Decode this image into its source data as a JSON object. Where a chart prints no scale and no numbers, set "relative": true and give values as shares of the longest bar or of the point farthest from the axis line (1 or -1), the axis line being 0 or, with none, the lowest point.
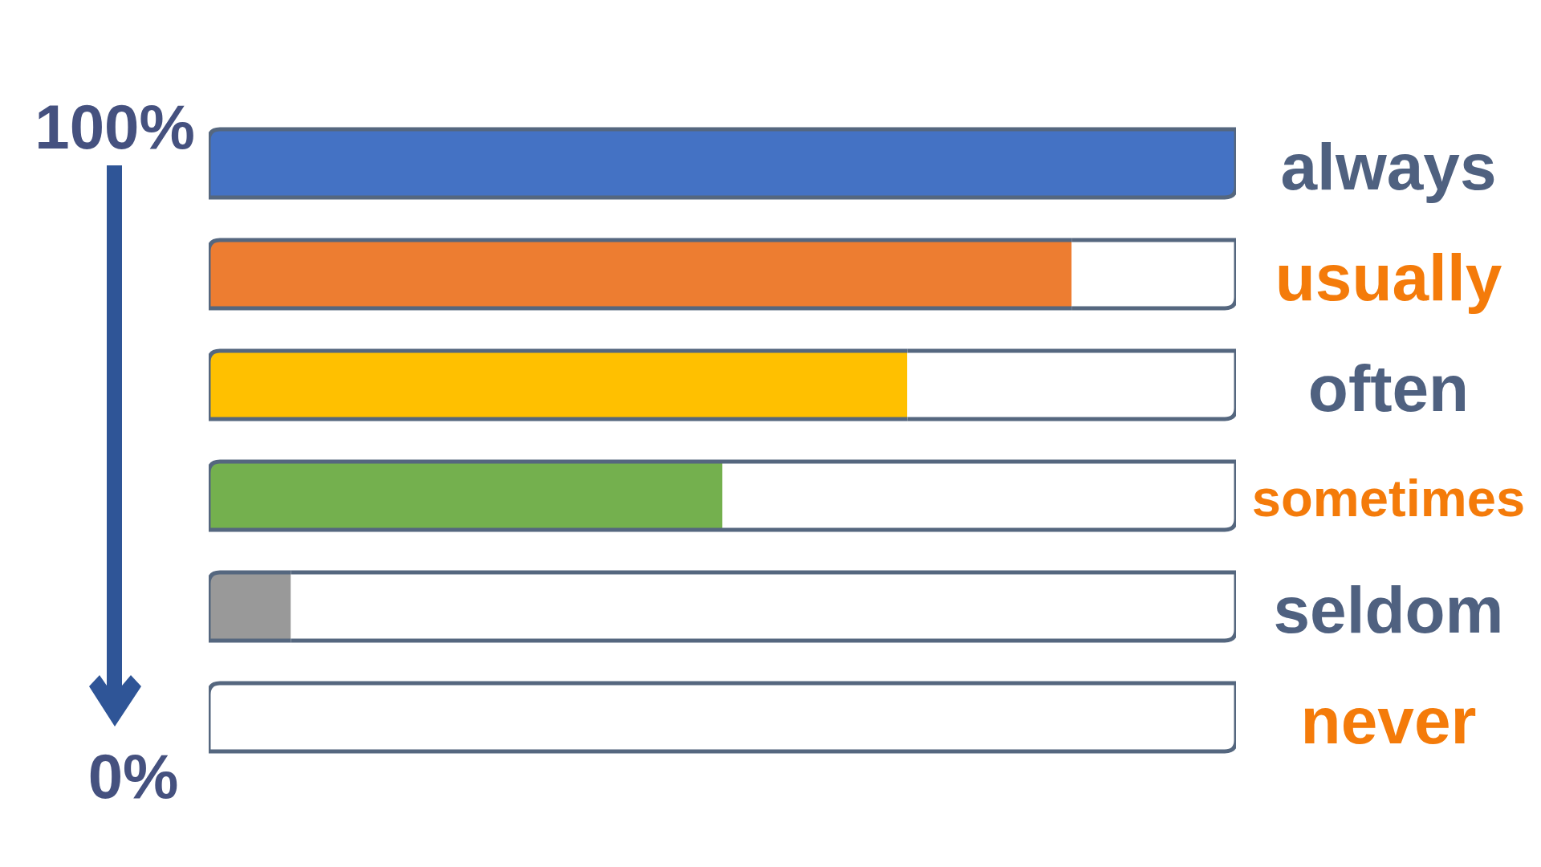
{
  "chart_data": {
    "type": "bar",
    "orientation": "horizontal",
    "relative": true,
    "stacked": true,
    "categories": [
      "always",
      "usually",
      "often",
      "sometimes",
      "seldom",
      "never"
    ],
    "series": [
      {
        "colors": [
          "#4472c4",
          "#ed7d31",
          "#ffc000",
          "#74b04e",
          "#999999",
          null
        ],
        "values": [
          1,
          0.84,
          0.68,
          0.5,
          0.08,
          0
        ]
      },
      {
        "color": "#ffffff",
        "values": [
          0,
          0.16,
          0.32,
          0.5,
          0.92,
          1
        ]
      }
    ],
    "annotations": [
      "100%",
      "0%"
    ]
  }
}
